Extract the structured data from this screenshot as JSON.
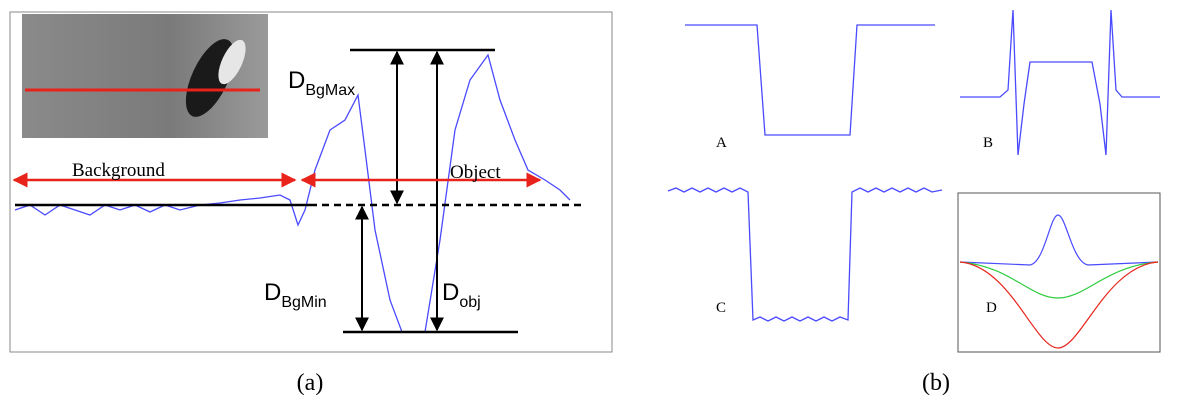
{
  "panel_a": {
    "label": "(a)",
    "background": "Background",
    "object": "Object",
    "d_bgmax": {
      "main": "D",
      "sub": "BgMax"
    },
    "d_bgmin": {
      "main": "D",
      "sub": "BgMin"
    },
    "d_obj": {
      "main": "D",
      "sub": "obj"
    }
  },
  "panel_b": {
    "label": "(b)",
    "plots": [
      "A",
      "B",
      "C",
      "D"
    ]
  }
}
